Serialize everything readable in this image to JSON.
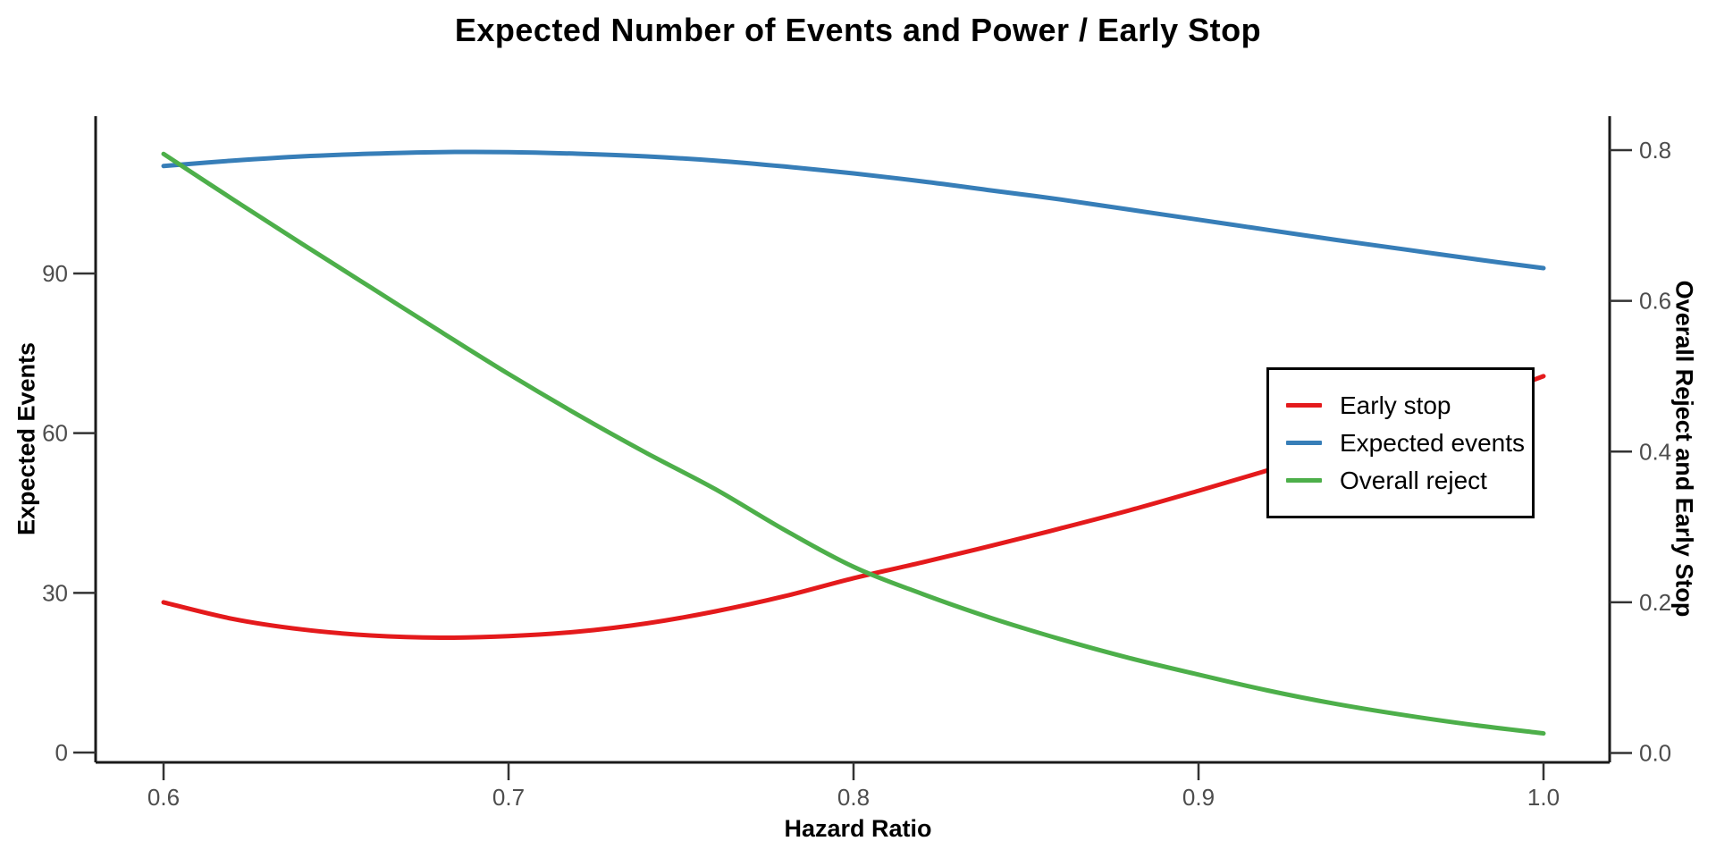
{
  "title": "Expected Number of Events and Power / Early Stop",
  "colors": {
    "early_stop": "#E41A1C",
    "expected_events": "#377EB8",
    "overall_reject": "#4DAF4A",
    "axis_line": "#1a1a1a",
    "tick_mark": "#333333",
    "tick_label": "#4d4d4d",
    "background": "#ffffff"
  },
  "axes": {
    "x": {
      "label": "Hazard Ratio",
      "ticks": [
        0.6,
        0.7,
        0.8,
        0.9,
        1.0
      ],
      "tick_labels": [
        "0.6",
        "0.7",
        "0.8",
        "0.9",
        "1.0"
      ],
      "range": [
        0.58,
        1.02
      ]
    },
    "y_left": {
      "label": "Expected Events",
      "ticks": [
        0,
        30,
        60,
        90
      ],
      "tick_labels": [
        "0",
        "30",
        "60",
        "90"
      ],
      "range": [
        -2,
        119
      ]
    },
    "y_right": {
      "label": "Overall Reject and Early Stop",
      "ticks": [
        0.0,
        0.2,
        0.4,
        0.6,
        0.8
      ],
      "tick_labels": [
        "0.0",
        "0.2",
        "0.4",
        "0.6",
        "0.8"
      ],
      "range": [
        -0.014,
        0.845
      ]
    }
  },
  "legend": {
    "position": "right-center",
    "items": [
      {
        "label": "Early stop",
        "color": "#E41A1C"
      },
      {
        "label": "Expected events",
        "color": "#377EB8"
      },
      {
        "label": "Overall reject",
        "color": "#4DAF4A"
      }
    ]
  },
  "chart_data": {
    "type": "line",
    "title": "Expected Number of Events and Power / Early Stop",
    "xlabel": "Hazard Ratio",
    "ylabel_left": "Expected Events",
    "ylabel_right": "Overall Reject and Early Stop",
    "grid": false,
    "legend_position": "right-center",
    "x": [
      0.6,
      0.62,
      0.64,
      0.66,
      0.68,
      0.7,
      0.72,
      0.74,
      0.76,
      0.78,
      0.8,
      0.82,
      0.84,
      0.86,
      0.88,
      0.9,
      0.92,
      0.94,
      0.96,
      0.98,
      1.0
    ],
    "series": [
      {
        "name": "Early stop",
        "axis": "right",
        "color": "#E41A1C",
        "values": [
          0.2,
          0.178,
          0.164,
          0.156,
          0.153,
          0.155,
          0.161,
          0.172,
          0.188,
          0.208,
          0.232,
          0.253,
          0.275,
          0.298,
          0.322,
          0.348,
          0.375,
          0.403,
          0.434,
          0.466,
          0.5
        ]
      },
      {
        "name": "Expected events",
        "axis": "left",
        "color": "#377EB8",
        "values": [
          110.2,
          111.2,
          112.0,
          112.5,
          112.8,
          112.8,
          112.5,
          112.0,
          111.2,
          110.1,
          108.8,
          107.3,
          105.6,
          103.9,
          102.0,
          100.1,
          98.2,
          96.3,
          94.5,
          92.7,
          91.0
        ]
      },
      {
        "name": "Overall reject",
        "axis": "right",
        "color": "#4DAF4A",
        "values": [
          0.795,
          0.735,
          0.676,
          0.618,
          0.56,
          0.503,
          0.449,
          0.398,
          0.35,
          0.296,
          0.247,
          0.211,
          0.179,
          0.151,
          0.126,
          0.104,
          0.083,
          0.065,
          0.05,
          0.037,
          0.026
        ]
      }
    ],
    "xlim": [
      0.58,
      1.02
    ],
    "ylim_left": [
      -2,
      119
    ],
    "ylim_right": [
      -0.014,
      0.845
    ]
  }
}
